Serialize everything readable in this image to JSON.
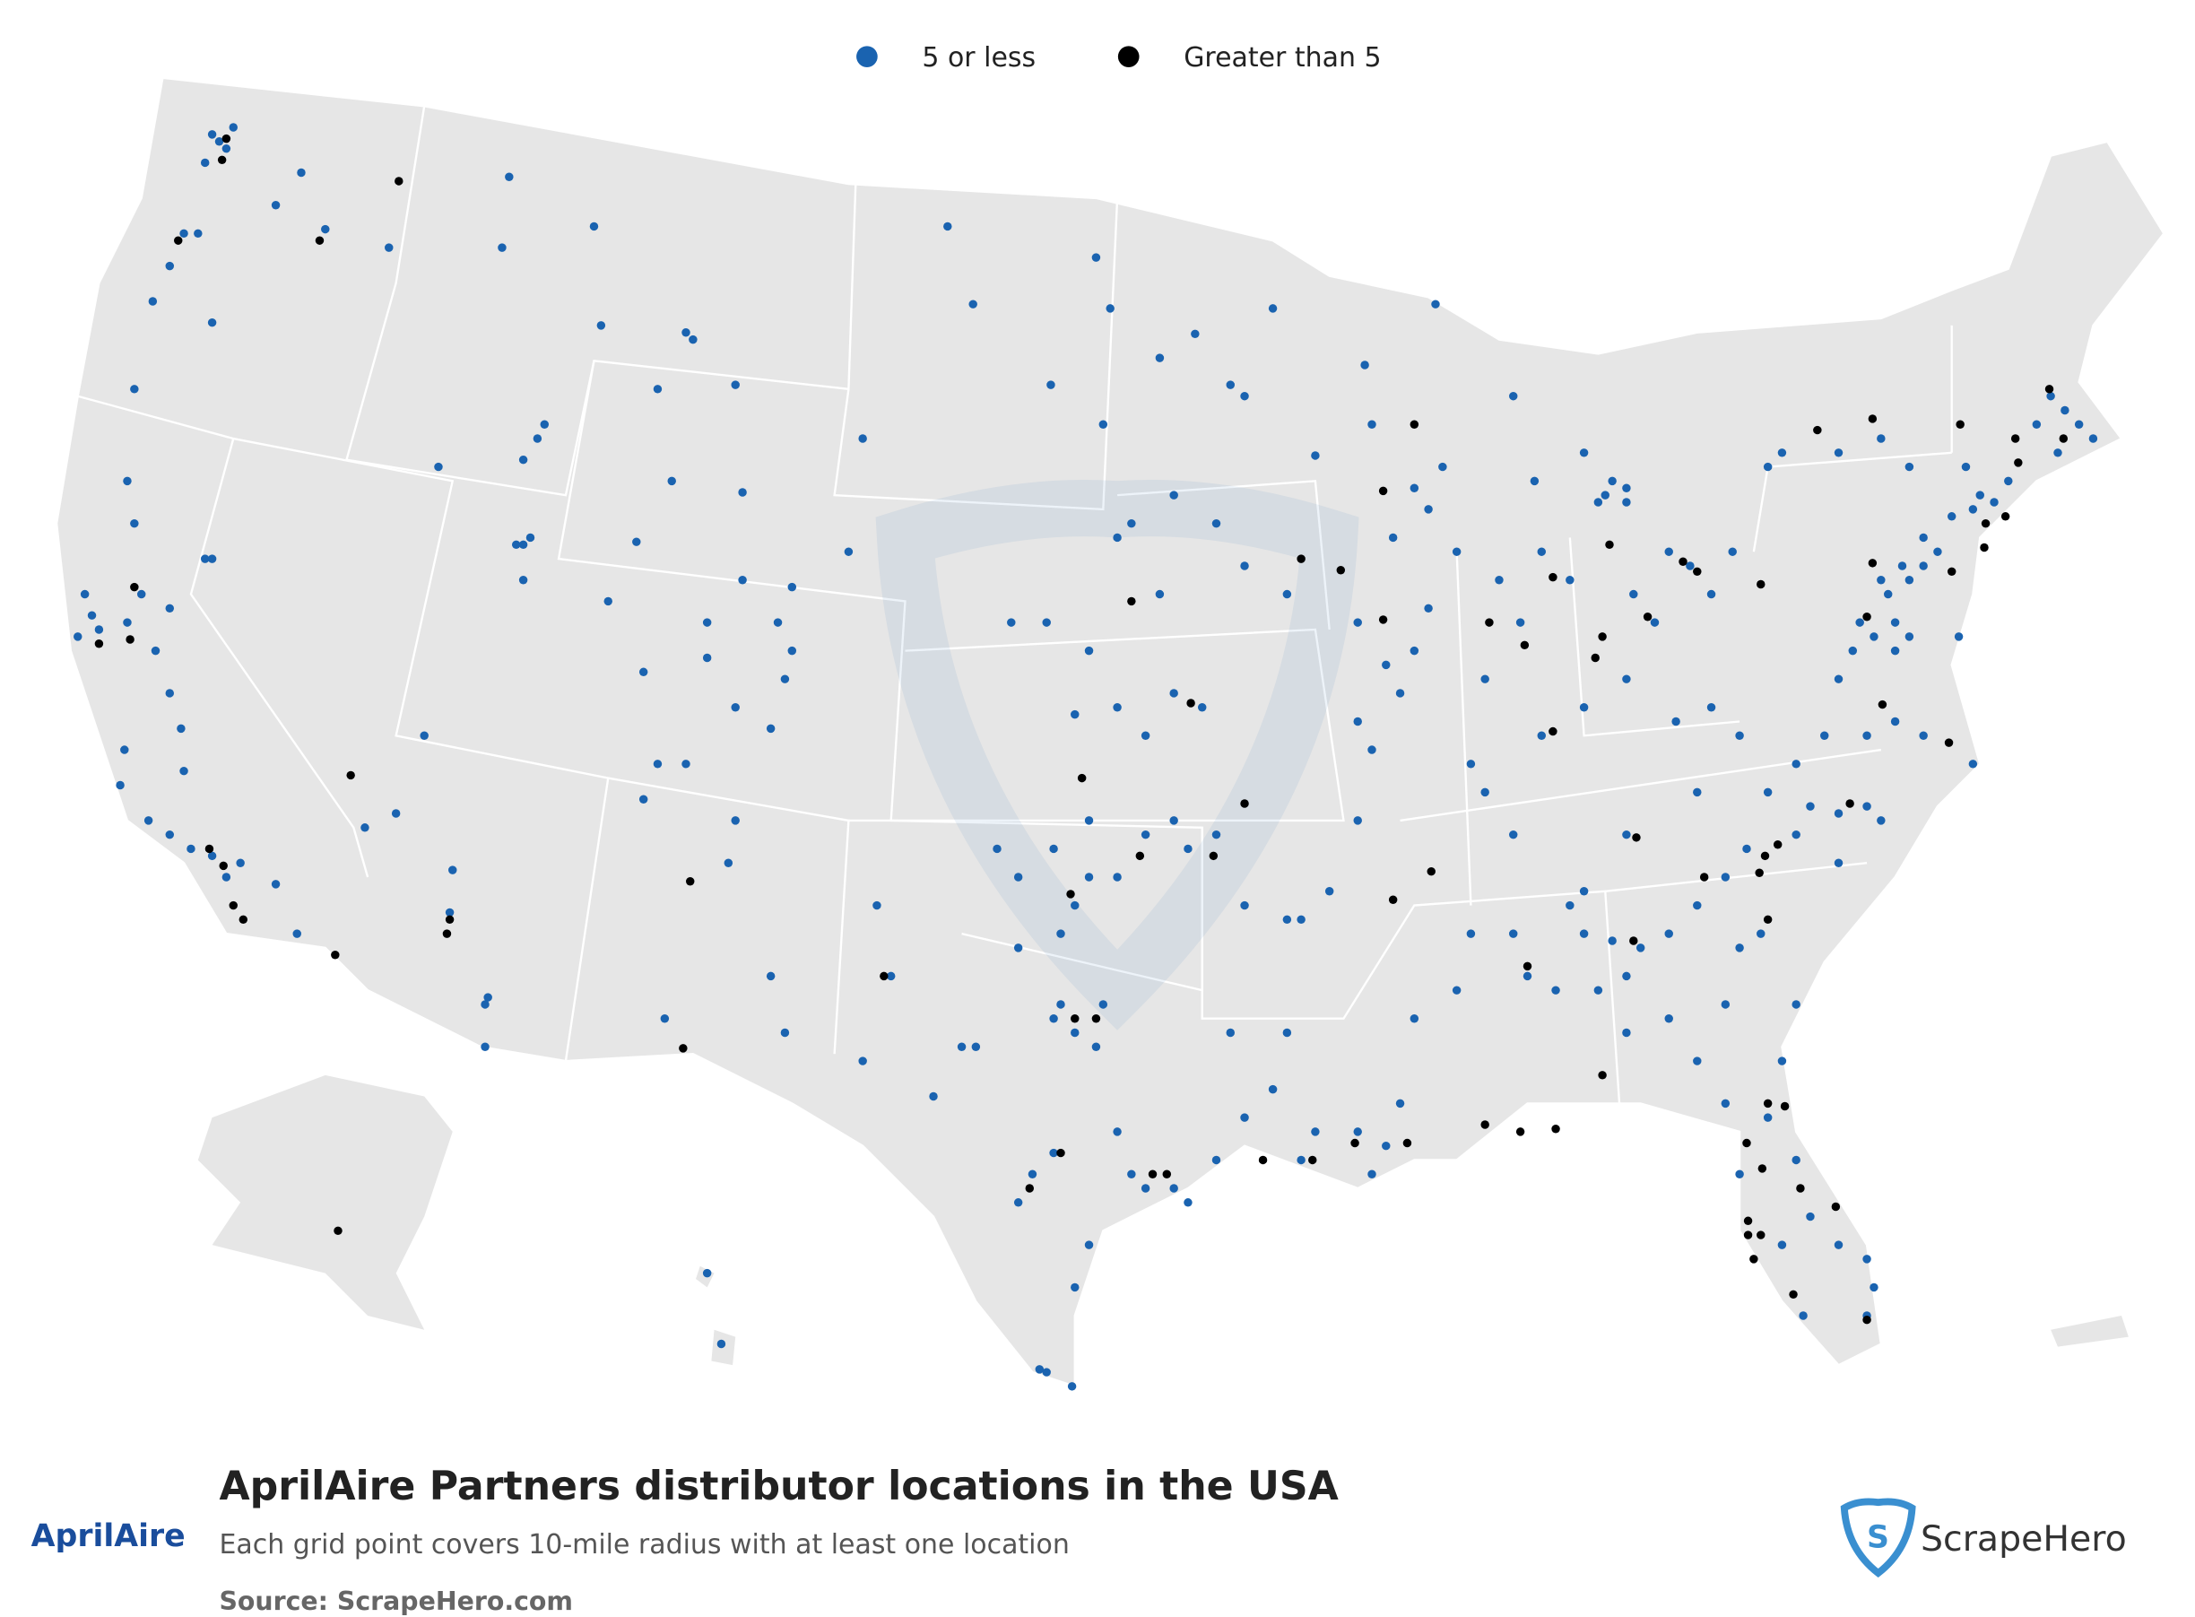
{
  "legend": {
    "items": [
      {
        "label": "5 or less",
        "color": "#1a63b0"
      },
      {
        "label": "Greater than 5",
        "color": "#000000"
      }
    ]
  },
  "footer": {
    "title": "AprilAire Partners distributor locations in the USA",
    "subtitle": "Each grid point covers 10-mile radius with at least one location",
    "source": "Source: ScrapeHero.com"
  },
  "logos": {
    "brand": "AprilAire",
    "provider": "ScrapeHero"
  }
}
